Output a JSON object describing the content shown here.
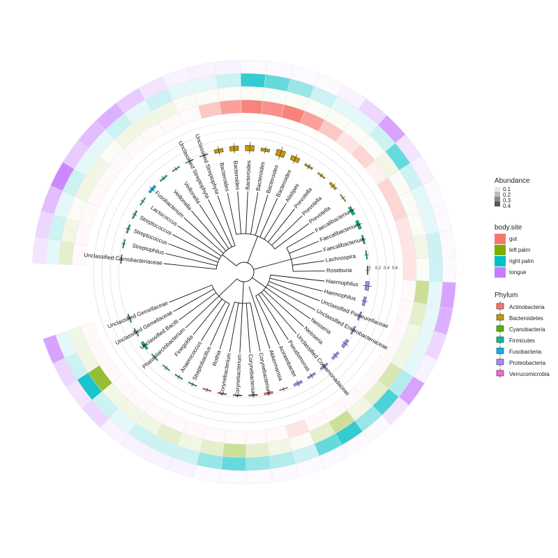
{
  "tips": [
    "Unclassified Carnobacteriaceae",
    "Streptophilus",
    "Streptococcus",
    "Streptococcus",
    "Lactococcus",
    "Fusobacterium",
    "Veillonella",
    "Veillonella",
    "Unclassified Streptophyta",
    "Unclassified Streptophyta",
    "Bacteroides",
    "Bacteroides",
    "Bacteroides",
    "Bacteroides",
    "Bacteroides",
    "Bacteroides",
    "Alistipes",
    "Prevotella",
    "Prevotella",
    "Prevotella",
    "Faecalibacterium",
    "Faecalibacterium",
    "Faecalibacterium",
    "Lachnospira",
    "Roseburia",
    "Haemophilus",
    "Haemophilus",
    "Unclassified Pasteurellaceae",
    "Unclassified Enterobacteriaceae",
    "Neisseria",
    "Neisseria",
    "Unclassified Comamonadaceae",
    "Pseudomonas",
    "Acinetobacter",
    "Akkermansia",
    "Corynebacterium",
    "Corynebacterium",
    "Corynebacterium",
    "Corynebacterium",
    "Rothia",
    "Streptobacillus",
    "Anaerococcus",
    "Finegoldia",
    "Phascolarctobacterium",
    "Unclassified Bacilli",
    "Unclassified Gemellaceae",
    "Unclassified Gemellaceae"
  ],
  "boxplot_axis": {
    "ticks": [
      "0",
      "0.2",
      "0.4",
      "0.6"
    ]
  },
  "legend": {
    "abundance": {
      "title": "Abundance",
      "labels": [
        "0.1",
        "0.2",
        "0.3",
        "0.4"
      ]
    },
    "body_site": {
      "title": "body.site",
      "items": [
        {
          "label": "gut",
          "color": "#F8766D"
        },
        {
          "label": "left palm",
          "color": "#7CAE00"
        },
        {
          "label": "right palm",
          "color": "#00BFC4"
        },
        {
          "label": "tongue",
          "color": "#C77CFF"
        }
      ]
    },
    "phylum": {
      "title": "Phylum",
      "items": [
        {
          "label": "Actinobacteria",
          "color": "#F8766D"
        },
        {
          "label": "Bacteroidetes",
          "color": "#C49A00"
        },
        {
          "label": "Cyanobacteria",
          "color": "#53B400"
        },
        {
          "label": "Firmicutes",
          "color": "#00C094"
        },
        {
          "label": "Fusobacteria",
          "color": "#00B6EB"
        },
        {
          "label": "Proteobacteria",
          "color": "#A58AFF"
        },
        {
          "label": "Verrucomicrobia",
          "color": "#FB61D7"
        }
      ]
    }
  },
  "phylum_of_tip": [
    "Firmicutes",
    "Firmicutes",
    "Firmicutes",
    "Firmicutes",
    "Firmicutes",
    "Fusobacteria",
    "Firmicutes",
    "Firmicutes",
    "Cyanobacteria",
    "Cyanobacteria",
    "Bacteroidetes",
    "Bacteroidetes",
    "Bacteroidetes",
    "Bacteroidetes",
    "Bacteroidetes",
    "Bacteroidetes",
    "Bacteroidetes",
    "Bacteroidetes",
    "Bacteroidetes",
    "Bacteroidetes",
    "Firmicutes",
    "Firmicutes",
    "Firmicutes",
    "Firmicutes",
    "Firmicutes",
    "Proteobacteria",
    "Proteobacteria",
    "Proteobacteria",
    "Proteobacteria",
    "Proteobacteria",
    "Proteobacteria",
    "Proteobacteria",
    "Proteobacteria",
    "Proteobacteria",
    "Verrucomicrobia",
    "Actinobacteria",
    "Actinobacteria",
    "Actinobacteria",
    "Actinobacteria",
    "Actinobacteria",
    "Fusobacteria",
    "Firmicutes",
    "Firmicutes",
    "Firmicutes",
    "Firmicutes",
    "Firmicutes",
    "Firmicutes"
  ],
  "box_values": [
    0.02,
    0.02,
    0.03,
    0.03,
    0.02,
    0.05,
    0.03,
    0.02,
    0.01,
    0.01,
    0.08,
    0.1,
    0.12,
    0.06,
    0.14,
    0.1,
    0.04,
    0.03,
    0.05,
    0.02,
    0.06,
    0.06,
    0.03,
    0.02,
    0.02,
    0.08,
    0.05,
    0.03,
    0.03,
    0.06,
    0.05,
    0.04,
    0.04,
    0.05,
    0.01,
    0.04,
    0.03,
    0.02,
    0.02,
    0.02,
    0.02,
    0.02,
    0.02,
    0.02,
    0.05,
    0.02,
    0.02
  ],
  "heat_ring": [
    {
      "site": "gut",
      "values": [
        0.0,
        0.0,
        0.0,
        0.0,
        0.0,
        0.0,
        0.0,
        0.0,
        0.0,
        0.0,
        0.2,
        0.35,
        0.45,
        0.4,
        0.45,
        0.35,
        0.2,
        0.1,
        0.15,
        0.05,
        0.15,
        0.15,
        0.1,
        0.1,
        0.1,
        0.0,
        0.0,
        0.0,
        0.0,
        0.0,
        0.0,
        0.0,
        0.0,
        0.0,
        0.1,
        0.0,
        0.0,
        0.0,
        0.0,
        0.0,
        0.0,
        0.0,
        0.0,
        0.0,
        0.0,
        0.0,
        0.0
      ]
    },
    {
      "site": "left palm",
      "values": [
        0.1,
        0.05,
        0.0,
        0.05,
        0.05,
        0.0,
        0.05,
        0.05,
        0.05,
        0.02,
        0.0,
        0.0,
        0.0,
        0.0,
        0.0,
        0.0,
        0.0,
        0.0,
        0.0,
        0.05,
        0.0,
        0.0,
        0.0,
        0.05,
        0.0,
        0.2,
        0.1,
        0.05,
        0.05,
        0.15,
        0.1,
        0.05,
        0.2,
        0.1,
        0.0,
        0.05,
        0.1,
        0.2,
        0.1,
        0.05,
        0.1,
        0.05,
        0.05,
        0.05,
        0.4,
        0.05,
        0.05
      ]
    },
    {
      "site": "right palm",
      "values": [
        0.05,
        0.1,
        0.05,
        0.1,
        0.05,
        0.05,
        0.1,
        0.05,
        0.1,
        0.05,
        0.05,
        0.1,
        0.4,
        0.3,
        0.2,
        0.1,
        0.05,
        0.05,
        0.1,
        0.3,
        0.1,
        0.05,
        0.05,
        0.1,
        0.1,
        0.05,
        0.05,
        0.05,
        0.05,
        0.15,
        0.35,
        0.2,
        0.4,
        0.3,
        0.1,
        0.15,
        0.2,
        0.3,
        0.2,
        0.1,
        0.1,
        0.1,
        0.05,
        0.1,
        0.45,
        0.1,
        0.05
      ]
    },
    {
      "site": "tongue",
      "values": [
        0.1,
        0.15,
        0.25,
        0.45,
        0.2,
        0.25,
        0.3,
        0.2,
        0.1,
        0.05,
        0.05,
        0.05,
        0.02,
        0.02,
        0.02,
        0.0,
        0.05,
        0.15,
        0.35,
        0.1,
        0.05,
        0.0,
        0.0,
        0.0,
        0.02,
        0.35,
        0.3,
        0.15,
        0.05,
        0.35,
        0.1,
        0.02,
        0.02,
        0.02,
        0.0,
        0.02,
        0.02,
        0.02,
        0.02,
        0.05,
        0.05,
        0.05,
        0.05,
        0.15,
        0.1,
        0.15,
        0.35
      ]
    }
  ]
}
